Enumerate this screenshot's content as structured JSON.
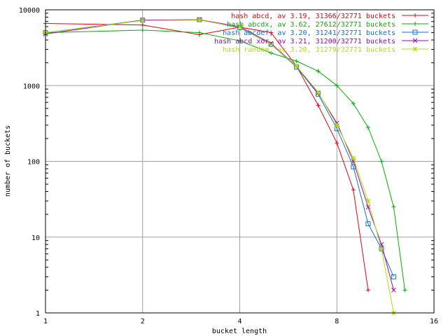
{
  "chart_data": {
    "type": "line",
    "xlabel": "bucket length",
    "ylabel": "number of buckets",
    "x_scale": "log2",
    "y_scale": "log10",
    "xlim": [
      1,
      16
    ],
    "ylim": [
      1,
      10000
    ],
    "x_ticks": [
      "1",
      "2",
      "4",
      "8",
      "16"
    ],
    "y_ticks": [
      "1",
      "10",
      "100",
      "1000",
      "10000"
    ],
    "grid": true,
    "legend_position": "top-right",
    "series": [
      {
        "name": "hash abcd, av 3.19, 31366/32771 buckets",
        "color": "#e8000b",
        "marker": "plus",
        "x": [
          1,
          2,
          3,
          4,
          5,
          6,
          7,
          8,
          9,
          10
        ],
        "y": [
          6600,
          6300,
          4700,
          5900,
          5000,
          1800,
          550,
          175,
          42,
          2
        ]
      },
      {
        "name": "hash abcdx, av 3.62, 27612/32771 buckets",
        "color": "#00b000",
        "marker": "cross",
        "x": [
          1,
          2,
          3,
          4,
          5,
          6,
          7,
          8,
          9,
          10,
          11,
          12,
          13
        ],
        "y": [
          5000,
          5400,
          5000,
          3900,
          2700,
          2100,
          1550,
          1000,
          580,
          280,
          100,
          25,
          2
        ]
      },
      {
        "name": "hash abcdef, av 3.20, 31241/32771 buckets",
        "color": "#1070d0",
        "marker": "square",
        "x": [
          1,
          2,
          3,
          4,
          5,
          6,
          7,
          8,
          9,
          10,
          11,
          12
        ],
        "y": [
          5000,
          7300,
          7400,
          5800,
          3500,
          1750,
          770,
          270,
          85,
          15,
          7,
          3
        ]
      },
      {
        "name": "hash abcd xor, av 3.21, 31200/32771 buckets",
        "color": "#a000c0",
        "marker": "x",
        "x": [
          1,
          2,
          3,
          4,
          5,
          6,
          7,
          8,
          9,
          10,
          11,
          12
        ],
        "y": [
          4800,
          7300,
          7400,
          6000,
          3600,
          1800,
          800,
          320,
          100,
          25,
          8,
          2
        ]
      },
      {
        "name": "hash random, av 3.20, 31279/32771 buckets",
        "color": "#b0e000",
        "marker": "star",
        "x": [
          1,
          2,
          3,
          4,
          5,
          6,
          7,
          8,
          9,
          10,
          11,
          12
        ],
        "y": [
          5000,
          7200,
          7300,
          5900,
          3500,
          1800,
          820,
          300,
          110,
          30,
          7,
          1
        ]
      }
    ]
  }
}
